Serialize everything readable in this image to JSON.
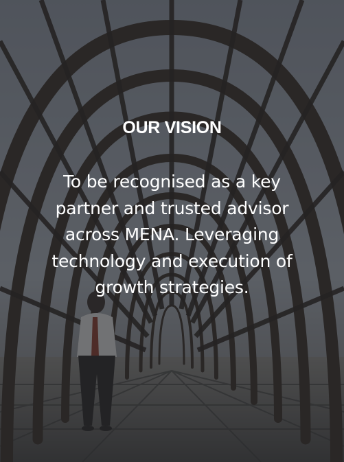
{
  "vision": {
    "heading": "OUR VISION",
    "lines": [
      "To be recognised as a key",
      "partner and trusted advisor",
      "across MENA. Leveraging",
      "technology and execution of",
      "growth strategies."
    ]
  },
  "colors": {
    "text": "#ffffff",
    "overlay": "#1e2026"
  }
}
